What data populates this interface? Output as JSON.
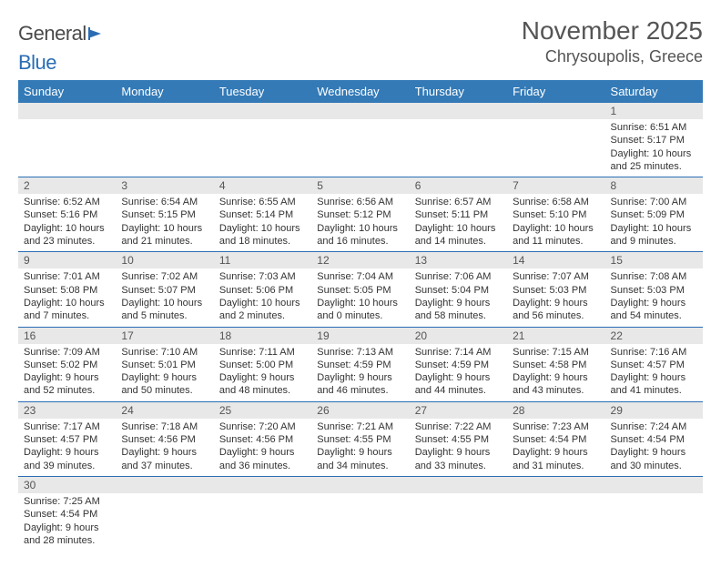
{
  "brand": {
    "name_a": "General",
    "name_b": "Blue"
  },
  "title": "November 2025",
  "location": "Chrysoupolis, Greece",
  "header_color": "#337ab7",
  "border_color": "#2a6db4",
  "daynum_bg": "#e8e8e8",
  "text_color": "#333333",
  "weekdays": [
    "Sunday",
    "Monday",
    "Tuesday",
    "Wednesday",
    "Thursday",
    "Friday",
    "Saturday"
  ],
  "weeks": [
    [
      {
        "n": "",
        "sr": "",
        "ss": "",
        "dl": ""
      },
      {
        "n": "",
        "sr": "",
        "ss": "",
        "dl": ""
      },
      {
        "n": "",
        "sr": "",
        "ss": "",
        "dl": ""
      },
      {
        "n": "",
        "sr": "",
        "ss": "",
        "dl": ""
      },
      {
        "n": "",
        "sr": "",
        "ss": "",
        "dl": ""
      },
      {
        "n": "",
        "sr": "",
        "ss": "",
        "dl": ""
      },
      {
        "n": "1",
        "sr": "Sunrise: 6:51 AM",
        "ss": "Sunset: 5:17 PM",
        "dl": "Daylight: 10 hours and 25 minutes."
      }
    ],
    [
      {
        "n": "2",
        "sr": "Sunrise: 6:52 AM",
        "ss": "Sunset: 5:16 PM",
        "dl": "Daylight: 10 hours and 23 minutes."
      },
      {
        "n": "3",
        "sr": "Sunrise: 6:54 AM",
        "ss": "Sunset: 5:15 PM",
        "dl": "Daylight: 10 hours and 21 minutes."
      },
      {
        "n": "4",
        "sr": "Sunrise: 6:55 AM",
        "ss": "Sunset: 5:14 PM",
        "dl": "Daylight: 10 hours and 18 minutes."
      },
      {
        "n": "5",
        "sr": "Sunrise: 6:56 AM",
        "ss": "Sunset: 5:12 PM",
        "dl": "Daylight: 10 hours and 16 minutes."
      },
      {
        "n": "6",
        "sr": "Sunrise: 6:57 AM",
        "ss": "Sunset: 5:11 PM",
        "dl": "Daylight: 10 hours and 14 minutes."
      },
      {
        "n": "7",
        "sr": "Sunrise: 6:58 AM",
        "ss": "Sunset: 5:10 PM",
        "dl": "Daylight: 10 hours and 11 minutes."
      },
      {
        "n": "8",
        "sr": "Sunrise: 7:00 AM",
        "ss": "Sunset: 5:09 PM",
        "dl": "Daylight: 10 hours and 9 minutes."
      }
    ],
    [
      {
        "n": "9",
        "sr": "Sunrise: 7:01 AM",
        "ss": "Sunset: 5:08 PM",
        "dl": "Daylight: 10 hours and 7 minutes."
      },
      {
        "n": "10",
        "sr": "Sunrise: 7:02 AM",
        "ss": "Sunset: 5:07 PM",
        "dl": "Daylight: 10 hours and 5 minutes."
      },
      {
        "n": "11",
        "sr": "Sunrise: 7:03 AM",
        "ss": "Sunset: 5:06 PM",
        "dl": "Daylight: 10 hours and 2 minutes."
      },
      {
        "n": "12",
        "sr": "Sunrise: 7:04 AM",
        "ss": "Sunset: 5:05 PM",
        "dl": "Daylight: 10 hours and 0 minutes."
      },
      {
        "n": "13",
        "sr": "Sunrise: 7:06 AM",
        "ss": "Sunset: 5:04 PM",
        "dl": "Daylight: 9 hours and 58 minutes."
      },
      {
        "n": "14",
        "sr": "Sunrise: 7:07 AM",
        "ss": "Sunset: 5:03 PM",
        "dl": "Daylight: 9 hours and 56 minutes."
      },
      {
        "n": "15",
        "sr": "Sunrise: 7:08 AM",
        "ss": "Sunset: 5:03 PM",
        "dl": "Daylight: 9 hours and 54 minutes."
      }
    ],
    [
      {
        "n": "16",
        "sr": "Sunrise: 7:09 AM",
        "ss": "Sunset: 5:02 PM",
        "dl": "Daylight: 9 hours and 52 minutes."
      },
      {
        "n": "17",
        "sr": "Sunrise: 7:10 AM",
        "ss": "Sunset: 5:01 PM",
        "dl": "Daylight: 9 hours and 50 minutes."
      },
      {
        "n": "18",
        "sr": "Sunrise: 7:11 AM",
        "ss": "Sunset: 5:00 PM",
        "dl": "Daylight: 9 hours and 48 minutes."
      },
      {
        "n": "19",
        "sr": "Sunrise: 7:13 AM",
        "ss": "Sunset: 4:59 PM",
        "dl": "Daylight: 9 hours and 46 minutes."
      },
      {
        "n": "20",
        "sr": "Sunrise: 7:14 AM",
        "ss": "Sunset: 4:59 PM",
        "dl": "Daylight: 9 hours and 44 minutes."
      },
      {
        "n": "21",
        "sr": "Sunrise: 7:15 AM",
        "ss": "Sunset: 4:58 PM",
        "dl": "Daylight: 9 hours and 43 minutes."
      },
      {
        "n": "22",
        "sr": "Sunrise: 7:16 AM",
        "ss": "Sunset: 4:57 PM",
        "dl": "Daylight: 9 hours and 41 minutes."
      }
    ],
    [
      {
        "n": "23",
        "sr": "Sunrise: 7:17 AM",
        "ss": "Sunset: 4:57 PM",
        "dl": "Daylight: 9 hours and 39 minutes."
      },
      {
        "n": "24",
        "sr": "Sunrise: 7:18 AM",
        "ss": "Sunset: 4:56 PM",
        "dl": "Daylight: 9 hours and 37 minutes."
      },
      {
        "n": "25",
        "sr": "Sunrise: 7:20 AM",
        "ss": "Sunset: 4:56 PM",
        "dl": "Daylight: 9 hours and 36 minutes."
      },
      {
        "n": "26",
        "sr": "Sunrise: 7:21 AM",
        "ss": "Sunset: 4:55 PM",
        "dl": "Daylight: 9 hours and 34 minutes."
      },
      {
        "n": "27",
        "sr": "Sunrise: 7:22 AM",
        "ss": "Sunset: 4:55 PM",
        "dl": "Daylight: 9 hours and 33 minutes."
      },
      {
        "n": "28",
        "sr": "Sunrise: 7:23 AM",
        "ss": "Sunset: 4:54 PM",
        "dl": "Daylight: 9 hours and 31 minutes."
      },
      {
        "n": "29",
        "sr": "Sunrise: 7:24 AM",
        "ss": "Sunset: 4:54 PM",
        "dl": "Daylight: 9 hours and 30 minutes."
      }
    ],
    [
      {
        "n": "30",
        "sr": "Sunrise: 7:25 AM",
        "ss": "Sunset: 4:54 PM",
        "dl": "Daylight: 9 hours and 28 minutes."
      },
      {
        "n": "",
        "sr": "",
        "ss": "",
        "dl": ""
      },
      {
        "n": "",
        "sr": "",
        "ss": "",
        "dl": ""
      },
      {
        "n": "",
        "sr": "",
        "ss": "",
        "dl": ""
      },
      {
        "n": "",
        "sr": "",
        "ss": "",
        "dl": ""
      },
      {
        "n": "",
        "sr": "",
        "ss": "",
        "dl": ""
      },
      {
        "n": "",
        "sr": "",
        "ss": "",
        "dl": ""
      }
    ]
  ]
}
